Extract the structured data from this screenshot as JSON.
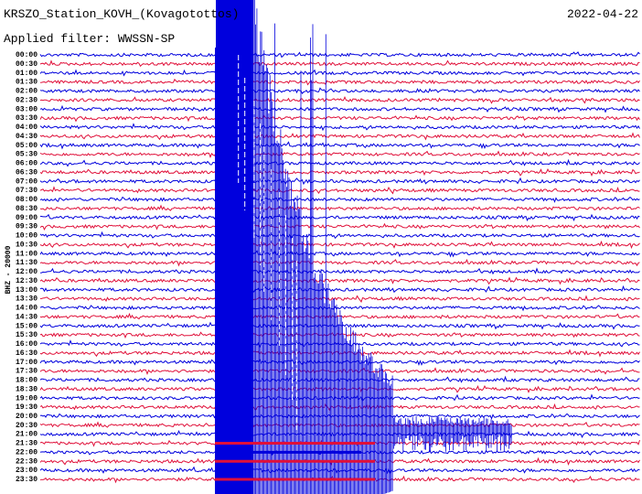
{
  "header": {
    "title": "KRSZO_Station_KOVH_(Kovagotottos)",
    "date": "2022-04-22",
    "filter": "Applied filter: WWSSN-SP"
  },
  "axis_label": "BHZ - 20000",
  "time_labels": [
    "00:00",
    "00:30",
    "01:00",
    "01:30",
    "02:00",
    "02:30",
    "03:00",
    "03:30",
    "04:00",
    "04:30",
    "05:00",
    "05:30",
    "06:00",
    "06:30",
    "07:00",
    "07:30",
    "08:00",
    "08:30",
    "09:00",
    "09:30",
    "10:00",
    "10:30",
    "11:00",
    "11:30",
    "12:00",
    "12:30",
    "13:00",
    "13:30",
    "14:00",
    "14:30",
    "15:00",
    "15:30",
    "16:00",
    "16:30",
    "17:00",
    "17:30",
    "18:00",
    "18:30",
    "19:00",
    "19:30",
    "20:00",
    "20:30",
    "21:00",
    "21:30",
    "22:00",
    "22:30",
    "23:00",
    "23:30"
  ]
}
